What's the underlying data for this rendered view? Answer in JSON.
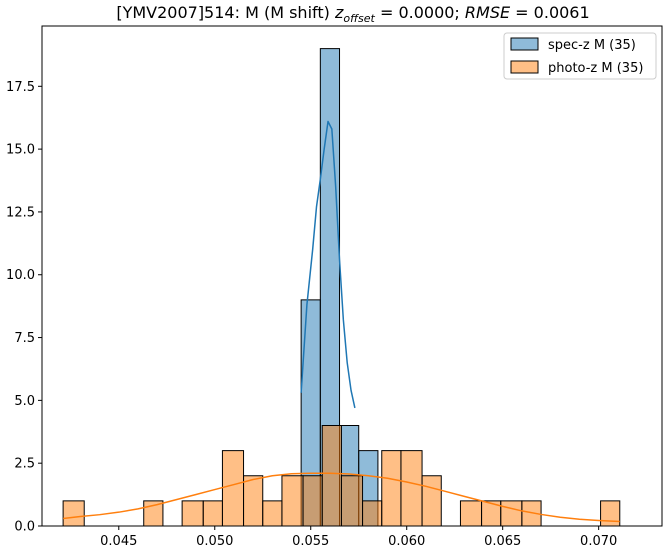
{
  "chart_data": {
    "type": "bar",
    "title": {
      "prefix": "[YMV2007]514: M (M shift) ",
      "z_symbol": "z",
      "z_subscript": "offset",
      "z_value": " = 0.0000; ",
      "rmse_symbol": "RMSE",
      "rmse_value": " = 0.0061"
    },
    "xlabel": "",
    "ylabel": "",
    "xlim": [
      0.041,
      0.0733
    ],
    "ylim": [
      0,
      19.9
    ],
    "x_ticks": [
      0.045,
      0.05,
      0.055,
      0.06,
      0.065,
      0.07
    ],
    "x_tick_labels": [
      "0.045",
      "0.050",
      "0.055",
      "0.060",
      "0.065",
      "0.070"
    ],
    "y_ticks": [
      0.0,
      2.5,
      5.0,
      7.5,
      10.0,
      12.5,
      15.0,
      17.5
    ],
    "y_tick_labels": [
      "0.0",
      "2.5",
      "5.0",
      "7.5",
      "10.0",
      "12.5",
      "15.0",
      "17.5"
    ],
    "grid": false,
    "legend_position": "top-right",
    "series": [
      {
        "name": "spec-z M (35)",
        "fill": "#1f77b4",
        "line_color": "#1f77b4",
        "bins": [
          {
            "x0": 0.0545,
            "x1": 0.0555,
            "count": 9
          },
          {
            "x0": 0.0555,
            "x1": 0.0565,
            "count": 19
          },
          {
            "x0": 0.0565,
            "x1": 0.0575,
            "count": 4
          },
          {
            "x0": 0.0575,
            "x1": 0.0585,
            "count": 3
          }
        ],
        "kde": {
          "x": [
            0.0545,
            0.0548,
            0.0551,
            0.0553,
            0.0555,
            0.0557,
            0.0559,
            0.0561,
            0.0563,
            0.0565,
            0.0567,
            0.0569,
            0.0571,
            0.0573
          ],
          "y": [
            5.3,
            8.8,
            11.0,
            12.7,
            13.8,
            15.0,
            16.1,
            15.8,
            13.5,
            10.6,
            8.2,
            6.5,
            5.4,
            4.7
          ]
        }
      },
      {
        "name": "photo-z M (35)",
        "fill": "#ff7f0e",
        "line_color": "#ff7f0e",
        "bins": [
          {
            "x0": 0.0421,
            "x1": 0.0432,
            "count": 1
          },
          {
            "x0": 0.0463,
            "x1": 0.0473,
            "count": 1
          },
          {
            "x0": 0.0483,
            "x1": 0.0494,
            "count": 1
          },
          {
            "x0": 0.0494,
            "x1": 0.0504,
            "count": 1
          },
          {
            "x0": 0.0504,
            "x1": 0.0515,
            "count": 3
          },
          {
            "x0": 0.0515,
            "x1": 0.0525,
            "count": 2
          },
          {
            "x0": 0.0525,
            "x1": 0.0535,
            "count": 1
          },
          {
            "x0": 0.0535,
            "x1": 0.0546,
            "count": 2
          },
          {
            "x0": 0.0546,
            "x1": 0.0556,
            "count": 2
          },
          {
            "x0": 0.0556,
            "x1": 0.0566,
            "count": 4
          },
          {
            "x0": 0.0566,
            "x1": 0.0577,
            "count": 2
          },
          {
            "x0": 0.0577,
            "x1": 0.0587,
            "count": 1
          },
          {
            "x0": 0.0587,
            "x1": 0.0597,
            "count": 3
          },
          {
            "x0": 0.0597,
            "x1": 0.0608,
            "count": 3
          },
          {
            "x0": 0.0608,
            "x1": 0.0618,
            "count": 2
          },
          {
            "x0": 0.0628,
            "x1": 0.0639,
            "count": 1
          },
          {
            "x0": 0.0639,
            "x1": 0.0649,
            "count": 1
          },
          {
            "x0": 0.0649,
            "x1": 0.066,
            "count": 1
          },
          {
            "x0": 0.066,
            "x1": 0.067,
            "count": 1
          },
          {
            "x0": 0.0701,
            "x1": 0.0711,
            "count": 1
          }
        ],
        "kde": {
          "x": [
            0.0421,
            0.043,
            0.044,
            0.045,
            0.046,
            0.047,
            0.048,
            0.049,
            0.05,
            0.051,
            0.052,
            0.053,
            0.054,
            0.055,
            0.056,
            0.057,
            0.058,
            0.059,
            0.06,
            0.061,
            0.062,
            0.063,
            0.064,
            0.065,
            0.066,
            0.067,
            0.068,
            0.069,
            0.07,
            0.0711
          ],
          "y": [
            0.3,
            0.38,
            0.45,
            0.55,
            0.68,
            0.85,
            1.05,
            1.25,
            1.45,
            1.65,
            1.85,
            2.0,
            2.08,
            2.1,
            2.1,
            2.07,
            2.0,
            1.9,
            1.75,
            1.58,
            1.38,
            1.18,
            0.98,
            0.78,
            0.6,
            0.46,
            0.35,
            0.27,
            0.22,
            0.18
          ]
        }
      }
    ]
  }
}
